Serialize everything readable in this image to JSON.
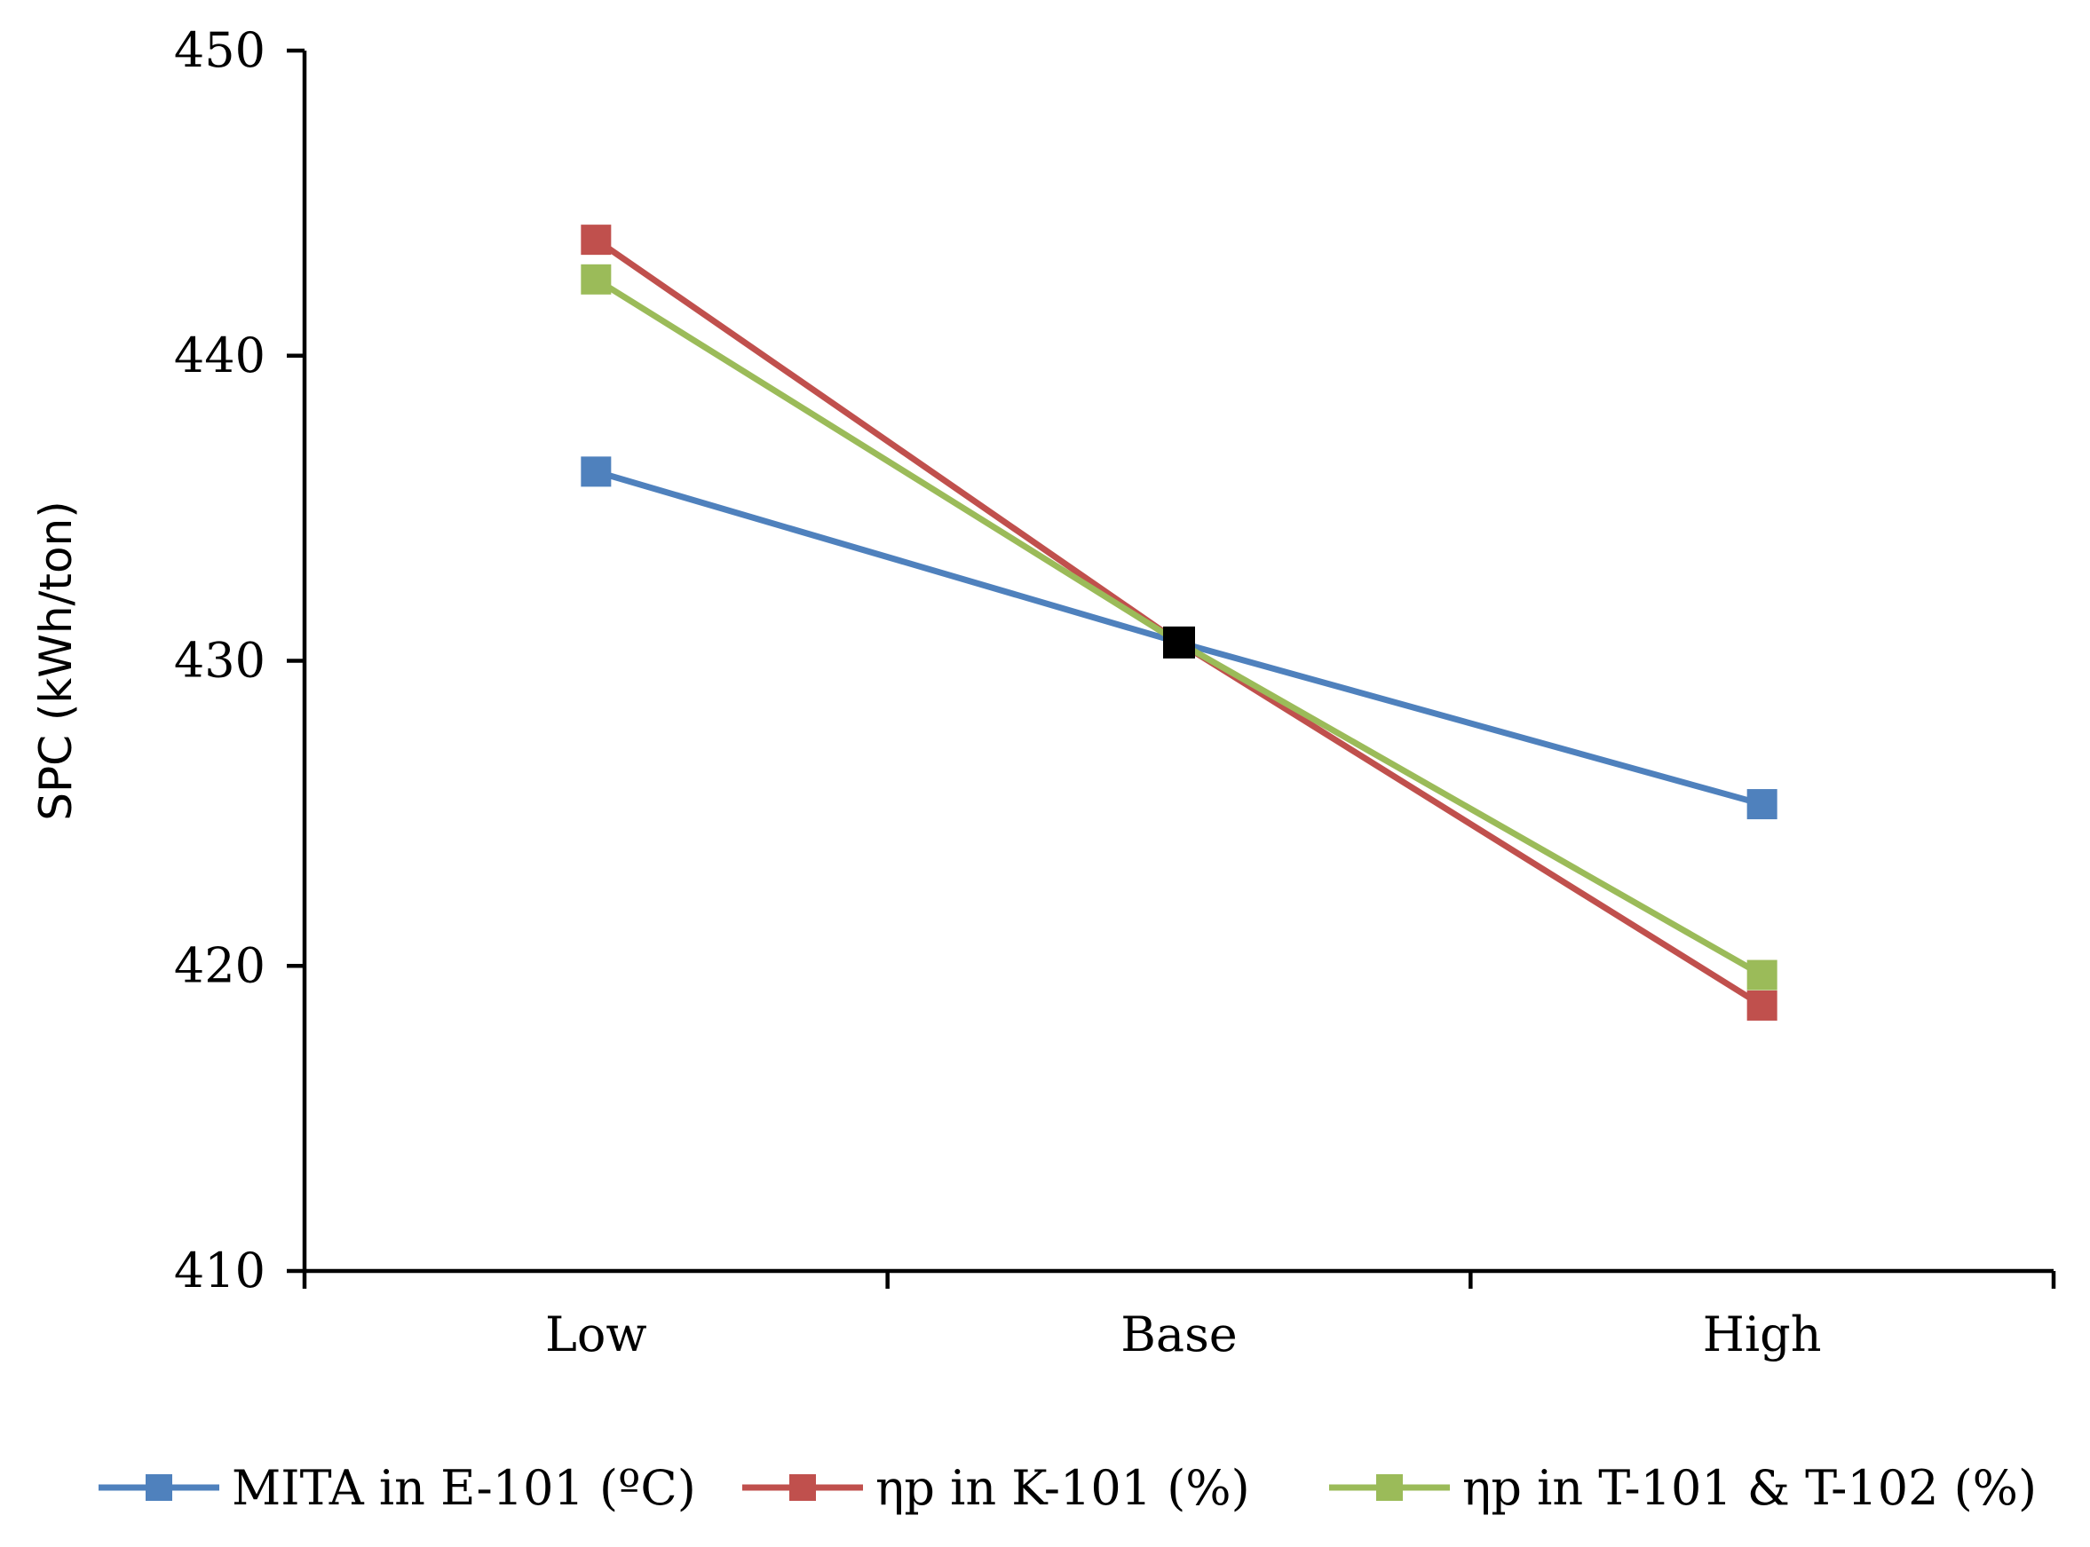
{
  "chart_data": {
    "type": "line",
    "title": "",
    "xlabel": "",
    "ylabel": "SPC (kWh/ton)",
    "categories": [
      "Low",
      "Base",
      "High"
    ],
    "ylim": [
      410,
      450
    ],
    "yticks": [
      410,
      420,
      430,
      440,
      450
    ],
    "grid": false,
    "legend_position": "bottom",
    "series": [
      {
        "name": "MITA in E-101 (ºC)",
        "color": "#4F81BD",
        "values": [
          436.2,
          430.6,
          425.3
        ]
      },
      {
        "name": "ηp  in K-101 (%)",
        "color": "#C0504D",
        "values": [
          443.8,
          430.6,
          418.7
        ]
      },
      {
        "name": "ηp in T-101 & T-102 (%)",
        "color": "#9BBB59",
        "values": [
          442.5,
          430.6,
          419.7
        ]
      }
    ],
    "base_point": {
      "category": "Base",
      "value": 430.6,
      "color": "#000000"
    }
  }
}
